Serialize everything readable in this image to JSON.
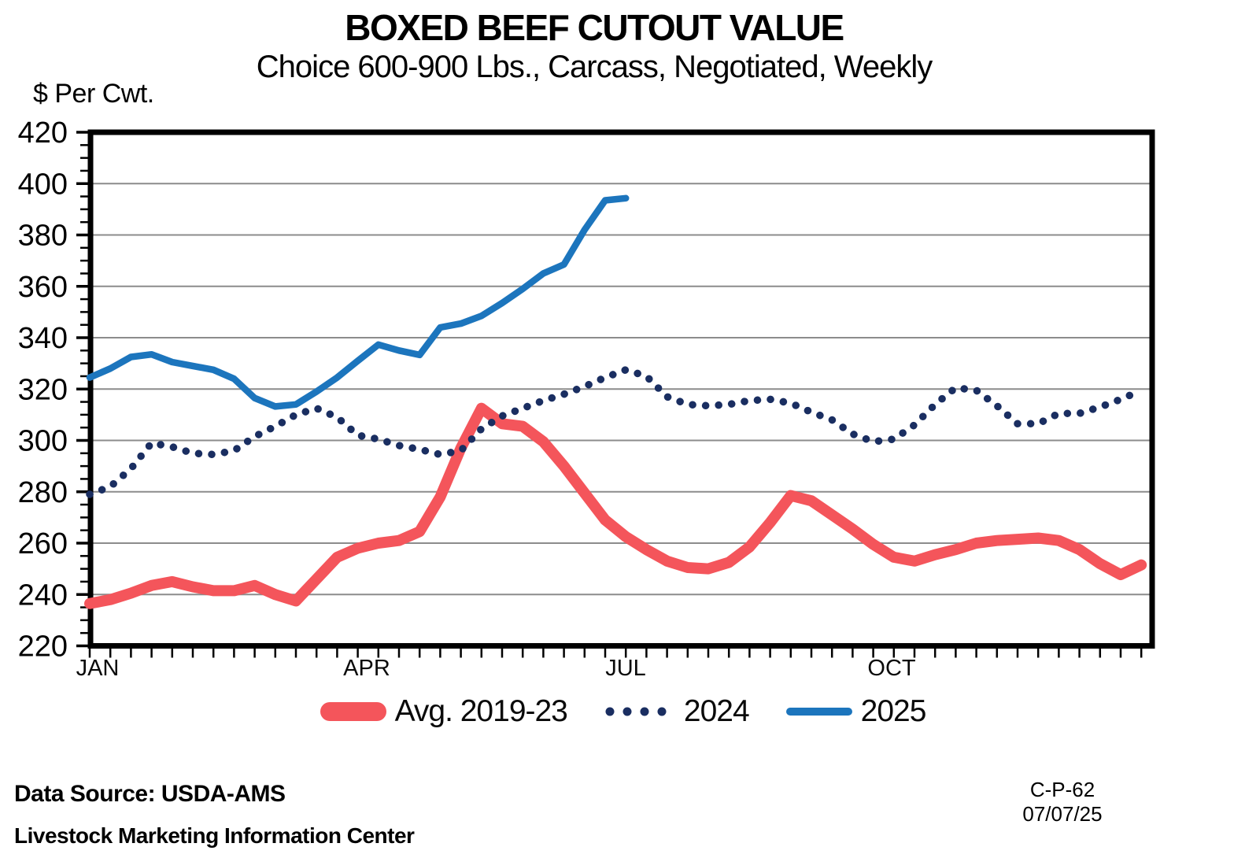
{
  "title": "BOXED BEEF CUTOUT VALUE",
  "subtitle": "Choice 600-900 Lbs., Carcass, Negotiated, Weekly",
  "y_axis_unit": "$ Per Cwt.",
  "footer": {
    "data_source": "Data Source:  USDA-AMS",
    "organization": "Livestock Marketing Information Center",
    "code": "C-P-62",
    "date": "07/07/25"
  },
  "chart_data": {
    "type": "line",
    "x_unit": "week",
    "x_tick_labels": [
      "JAN",
      "APR",
      "JUL",
      "OCT"
    ],
    "ylim": [
      220,
      420
    ],
    "y_major_step": 20,
    "y_minor_step": 5,
    "grid": true,
    "legend_position": "bottom",
    "axis_color": "#000000",
    "grid_color": "#8c8c8c",
    "series": [
      {
        "name": "Avg. 2019-23",
        "color": "#f4555b",
        "style": "solid-thick",
        "values": [
          236.5,
          238,
          240.5,
          243.5,
          245,
          243,
          241.5,
          241.5,
          243.5,
          240,
          237.5,
          246,
          254.5,
          258,
          260,
          261,
          264.5,
          278,
          297,
          312.5,
          306.5,
          305.5,
          299.5,
          290,
          279.5,
          269,
          262.5,
          257.5,
          253,
          250.5,
          250,
          252.5,
          258.5,
          268,
          278.5,
          276.5,
          271,
          265.5,
          259.5,
          254.5,
          253,
          255.5,
          257.5,
          260,
          261,
          261.5,
          262,
          261,
          257.5,
          252,
          247.7,
          251.5
        ]
      },
      {
        "name": "2024",
        "color": "#1a2e61",
        "style": "dotted",
        "values": [
          279,
          282,
          289,
          299,
          297.5,
          295,
          294.5,
          296,
          301.5,
          305.5,
          310,
          312.5,
          309,
          302,
          300.5,
          298,
          296.5,
          294.5,
          296,
          304.5,
          309.5,
          312.5,
          315.5,
          318,
          321,
          324.5,
          327.5,
          325,
          317,
          314,
          313.5,
          314,
          315.5,
          316,
          314.5,
          311,
          308,
          302.5,
          299.5,
          300.5,
          306,
          314,
          320.5,
          319.5,
          313.5,
          306.5,
          306.5,
          310.5,
          310.5,
          313,
          316,
          319.5
        ]
      },
      {
        "name": "2025",
        "color": "#1c75bd",
        "style": "solid",
        "values": [
          324.5,
          328,
          332.5,
          333.5,
          330.5,
          329,
          327.5,
          324,
          316.5,
          313.2,
          314,
          319,
          324.5,
          331,
          337.3,
          335,
          333.3,
          344,
          345.5,
          348.5,
          353.5,
          359,
          365,
          368.5,
          382,
          393.5,
          394.3
        ]
      }
    ]
  }
}
